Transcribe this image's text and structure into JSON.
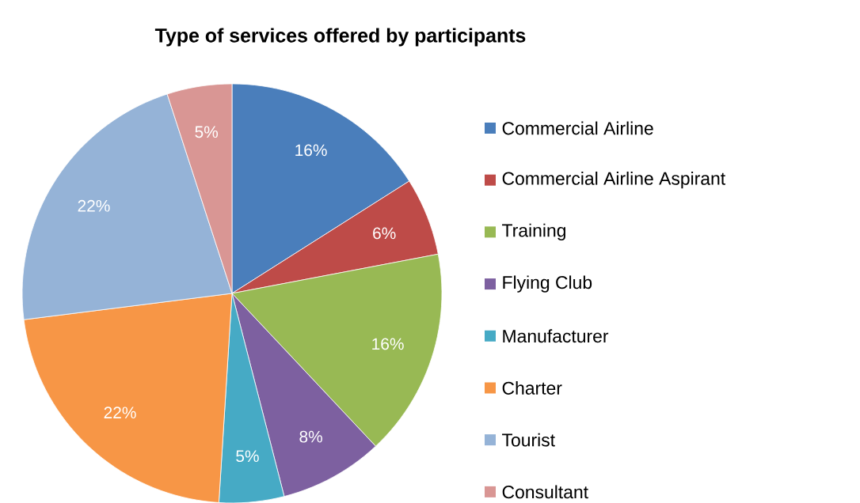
{
  "chart_data": {
    "type": "pie",
    "title": "Type of services offered by participants",
    "categories": [
      "Commercial Airline",
      "Commercial Airline Aspirant",
      "Training",
      "Flying Club",
      "Manufacturer",
      "Charter",
      "Tourist",
      "Consultant"
    ],
    "values": [
      16,
      6,
      16,
      8,
      5,
      22,
      22,
      5
    ],
    "value_labels": [
      "16%",
      "6%",
      "16%",
      "8%",
      "5%",
      "22%",
      "22%",
      "5%"
    ],
    "colors": [
      "#4a7ebb",
      "#be4b48",
      "#98b954",
      "#7d60a0",
      "#46aac5",
      "#f79646",
      "#95b3d7",
      "#d99694"
    ],
    "legend": "right"
  }
}
